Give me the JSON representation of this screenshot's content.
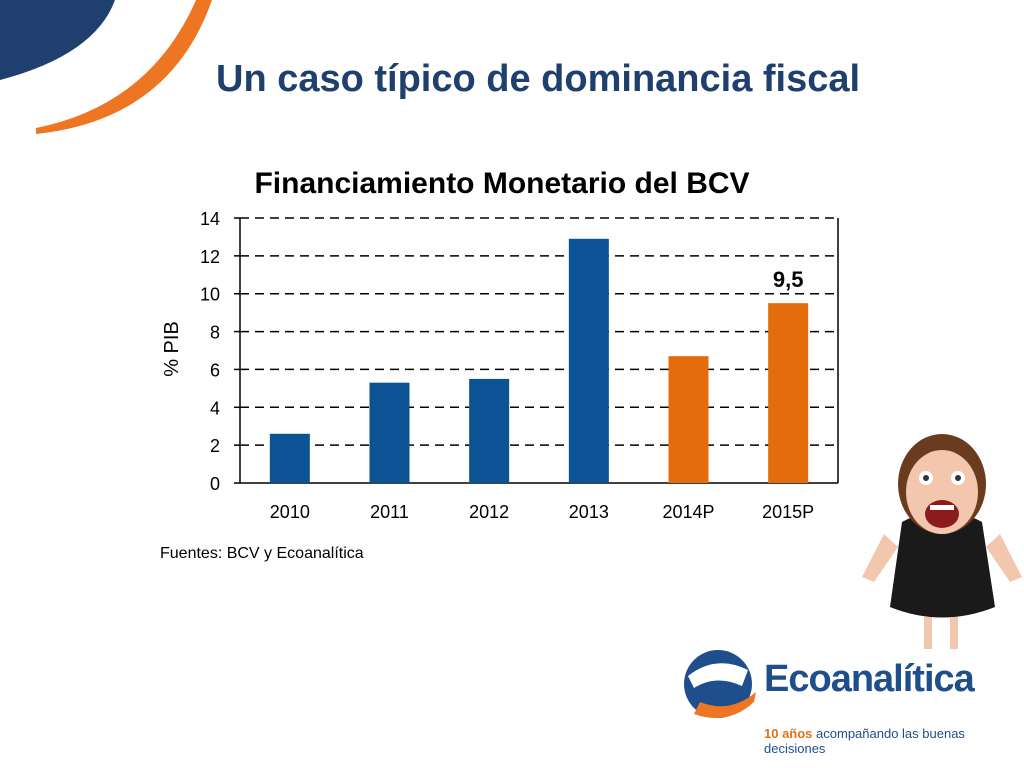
{
  "slide": {
    "title": "Un caso típico de dominancia fiscal"
  },
  "chart_data": {
    "type": "bar",
    "title": "Financiamiento Monetario del BCV",
    "xlabel": "",
    "ylabel": "% PIB",
    "categories": [
      "2010",
      "2011",
      "2012",
      "2013",
      "2014P",
      "2015P"
    ],
    "values": [
      2.6,
      5.3,
      5.5,
      12.9,
      6.7,
      9.5
    ],
    "bar_colors": [
      "#0b5394",
      "#0b5394",
      "#0b5394",
      "#0b5394",
      "#e46c0a",
      "#e46c0a"
    ],
    "ylim": [
      0,
      14
    ],
    "yticks": [
      0,
      2,
      4,
      6,
      8,
      10,
      12,
      14
    ],
    "grid": "dashed horizontal",
    "annotations": [
      {
        "category": "2015P",
        "text": "9,5"
      }
    ],
    "source": "Fuentes: BCV y Ecoanalítica"
  },
  "branding": {
    "logo_name": "Ecoanalítica",
    "tagline_bold": "10 años",
    "tagline_rest": " acompañando las buenas decisiones",
    "colors": {
      "navy": "#1f3f6e",
      "orange": "#ee7623",
      "blue": "#1f4e8c"
    }
  },
  "illustration": {
    "icon": "screaming-woman-photo"
  }
}
